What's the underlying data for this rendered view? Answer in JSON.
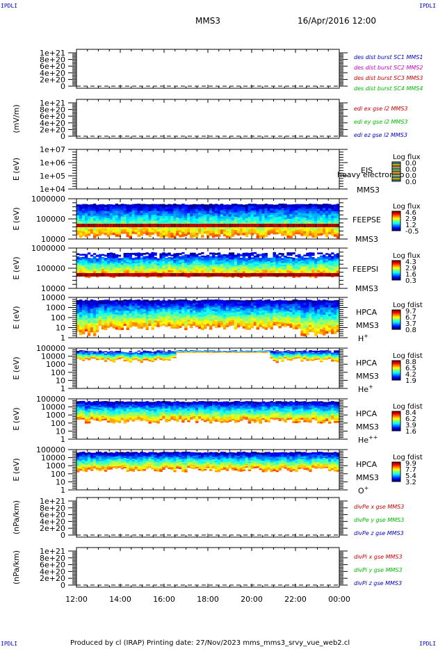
{
  "corner_label": "IPDLI",
  "header": {
    "spacecraft": "MMS3",
    "datetime": "16/Apr/2016 12:00"
  },
  "footer": {
    "text": "Produced by cl (IRAP)   Printing date: 27/Nov/2023   mms_mms3_srvy_vue_web2.cl"
  },
  "colors": {
    "blue": "#0000cc",
    "magenta": "#cc00cc",
    "red": "#cc0000",
    "green": "#00bb00"
  },
  "time_axis": {
    "labels": [
      "12:00",
      "14:00",
      "16:00",
      "18:00",
      "20:00",
      "22:00",
      "00:00"
    ]
  },
  "panels": [
    {
      "kind": "line",
      "ylabel": "",
      "ticks": [
        "1e+21",
        "8e+20",
        "6e+20",
        "4e+20",
        "2e+20",
        "0"
      ],
      "legend": [
        {
          "text": "des dist burst SC1 MMS1",
          "color": "#0000cc"
        },
        {
          "text": "des dist burst SC2 MMS2",
          "color": "#cc00cc"
        },
        {
          "text": "des dist burst SC3 MMS3",
          "color": "#cc0000"
        },
        {
          "text": "des dist burst SC4 MMS4",
          "color": "#00bb00"
        }
      ]
    },
    {
      "kind": "line",
      "ylabel": "(mV/m)",
      "ticks": [
        "1e+21",
        "8e+20",
        "6e+20",
        "4e+20",
        "2e+20",
        "0"
      ],
      "legend": [
        {
          "text": "edi ex gse l2 MMS3",
          "color": "#cc0000"
        },
        {
          "text": "edi ey gse l2 MMS3",
          "color": "#00bb00"
        },
        {
          "text": "edi ez gse l2 MMS3",
          "color": "#0000cc"
        }
      ]
    },
    {
      "kind": "spec",
      "ylabel": "E (eV)",
      "ticks": [
        "1e+07",
        "1e+06",
        "1e+05",
        "1e+04"
      ],
      "instrument": "EIS",
      "sc": "MMS3",
      "overlay": "heavy electron to",
      "species": "",
      "cbar_title": "Log flux",
      "cbar_values": [
        "0.0",
        "0.0",
        "0.0",
        "0.0"
      ],
      "empty": true
    },
    {
      "kind": "spec",
      "ylabel": "E (eV)",
      "ticks": [
        "1000000",
        "100000",
        "10000"
      ],
      "instrument": "FEEPSE",
      "sc": "MMS3",
      "species": "",
      "cbar_title": "Log flux",
      "cbar_values": [
        "4.6",
        "2.9",
        "1.2",
        "-0.5"
      ]
    },
    {
      "kind": "spec",
      "ylabel": "E (eV)",
      "ticks": [
        "1000000",
        "100000",
        "10000"
      ],
      "instrument": "FEEPSI",
      "sc": "MMS3",
      "species": "",
      "cbar_title": "Log flux",
      "cbar_values": [
        "4.3",
        "2.9",
        "1.6",
        "0.3"
      ]
    },
    {
      "kind": "spec",
      "ylabel": "E (eV)",
      "ticks": [
        "10000",
        "1000",
        "100",
        "10",
        "1"
      ],
      "instrument": "HPCA",
      "sc": "MMS3",
      "species": "H",
      "species_sup": "+",
      "cbar_title": "Log fdist",
      "cbar_values": [
        "9.7",
        "6.7",
        "3.7",
        "0.8"
      ]
    },
    {
      "kind": "spec",
      "ylabel": "E (eV)",
      "ticks": [
        "100000",
        "10000",
        "1000",
        "100",
        "10",
        "1"
      ],
      "instrument": "HPCA",
      "sc": "MMS3",
      "species": "He",
      "species_sup": "+",
      "cbar_title": "Log fdist",
      "cbar_values": [
        "8.8",
        "6.5",
        "4.2",
        "1.9"
      ]
    },
    {
      "kind": "spec",
      "ylabel": "E (eV)",
      "ticks": [
        "100000",
        "10000",
        "1000",
        "100",
        "10",
        "1"
      ],
      "instrument": "HPCA",
      "sc": "MMS3",
      "species": "He",
      "species_sup": "++",
      "cbar_title": "Log fdist",
      "cbar_values": [
        "8.4",
        "6.2",
        "3.9",
        "1.6"
      ]
    },
    {
      "kind": "spec",
      "ylabel": "E (eV)",
      "ticks": [
        "100000",
        "10000",
        "1000",
        "100",
        "10",
        "1"
      ],
      "instrument": "HPCA",
      "sc": "MMS3",
      "species": "O",
      "species_sup": "+",
      "cbar_title": "Log fdist",
      "cbar_values": [
        "9.9",
        "7.7",
        "5.4",
        "3.2"
      ]
    },
    {
      "kind": "line",
      "ylabel": "(nPa/km)",
      "ticks": [
        "1e+21",
        "8e+20",
        "6e+20",
        "4e+20",
        "2e+20",
        "0"
      ],
      "legend": [
        {
          "text": "divPe x gse MMS3",
          "color": "#cc0000"
        },
        {
          "text": "divPe y gse MMS3",
          "color": "#00bb00"
        },
        {
          "text": "divPe z gse MMS3",
          "color": "#0000cc"
        }
      ]
    },
    {
      "kind": "line",
      "ylabel": "(nPa/km)",
      "ticks": [
        "1e+21",
        "8e+20",
        "6e+20",
        "4e+20",
        "2e+20",
        "0"
      ],
      "legend": [
        {
          "text": "divPi x gse MMS3",
          "color": "#cc0000"
        },
        {
          "text": "divPi y gse MMS3",
          "color": "#00bb00"
        },
        {
          "text": "divPi z gse MMS3",
          "color": "#0000cc"
        }
      ]
    }
  ],
  "chart_data": {
    "type": "heatmap",
    "title": "MMS3 16/Apr/2016 12:00",
    "x": {
      "label": "",
      "ticks": [
        "12:00",
        "14:00",
        "16:00",
        "18:00",
        "20:00",
        "22:00",
        "00:00"
      ]
    },
    "panels": [
      {
        "name": "des dist burst",
        "type": "line",
        "ylim": [
          0,
          1e+21
        ],
        "values": []
      },
      {
        "name": "edi e gse l2",
        "ylabel": "(mV/m)",
        "type": "line",
        "ylim": [
          0,
          1e+21
        ],
        "values": []
      },
      {
        "name": "EIS",
        "ylabel": "E (eV)",
        "type": "heatmap",
        "yscale": "log",
        "ylim": [
          10000.0,
          10000000.0
        ],
        "colorbar": [
          0.0,
          0.0,
          0.0,
          0.0
        ]
      },
      {
        "name": "FEEPSE",
        "ylabel": "E (eV)",
        "type": "heatmap",
        "yscale": "log",
        "ylim": [
          10000.0,
          1000000.0
        ],
        "colorbar": [
          4.6,
          2.9,
          1.2,
          -0.5
        ]
      },
      {
        "name": "FEEPSI",
        "ylabel": "E (eV)",
        "type": "heatmap",
        "yscale": "log",
        "ylim": [
          10000.0,
          1000000.0
        ],
        "colorbar": [
          4.3,
          2.9,
          1.6,
          0.3
        ]
      },
      {
        "name": "HPCA H+",
        "ylabel": "E (eV)",
        "type": "heatmap",
        "yscale": "log",
        "ylim": [
          1,
          10000.0
        ],
        "colorbar": [
          9.7,
          6.7,
          3.7,
          0.8
        ]
      },
      {
        "name": "HPCA He+",
        "ylabel": "E (eV)",
        "type": "heatmap",
        "yscale": "log",
        "ylim": [
          1,
          100000.0
        ],
        "colorbar": [
          8.8,
          6.5,
          4.2,
          1.9
        ]
      },
      {
        "name": "HPCA He++",
        "ylabel": "E (eV)",
        "type": "heatmap",
        "yscale": "log",
        "ylim": [
          1,
          100000.0
        ],
        "colorbar": [
          8.4,
          6.2,
          3.9,
          1.6
        ]
      },
      {
        "name": "HPCA O+",
        "ylabel": "E (eV)",
        "type": "heatmap",
        "yscale": "log",
        "ylim": [
          1,
          100000.0
        ],
        "colorbar": [
          9.9,
          7.7,
          5.4,
          3.2
        ]
      },
      {
        "name": "divPe gse",
        "ylabel": "(nPa/km)",
        "type": "line",
        "ylim": [
          0,
          1e+21
        ],
        "values": []
      },
      {
        "name": "divPi gse",
        "ylabel": "(nPa/km)",
        "type": "line",
        "ylim": [
          0,
          1e+21
        ],
        "values": []
      }
    ]
  }
}
